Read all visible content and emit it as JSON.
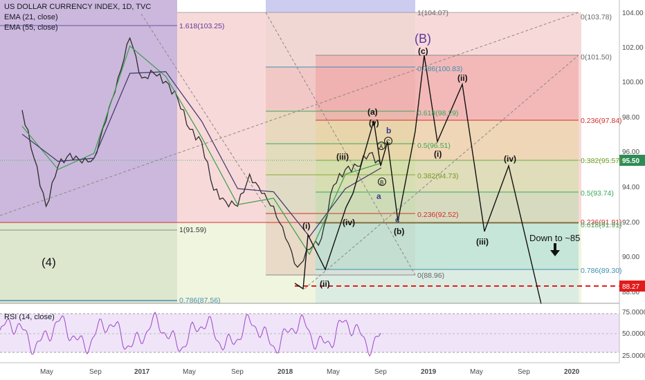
{
  "header": {
    "symbol": "US DOLLAR CURRENCY INDEX, 1D, TVC",
    "ema_fast": "EMA (21, close)",
    "ema_slow": "EMA (55, close)"
  },
  "rsi_pane": {
    "label": "RSI (14, close)",
    "ticks": [
      "75.0000",
      "50.0000",
      "25.0000"
    ]
  },
  "price_axis": {
    "ticks": [
      "104.00",
      "102.00",
      "100.00",
      "98.00",
      "96.00",
      "94.00",
      "92.00",
      "90.00",
      "88.00"
    ],
    "current_price": "95.50",
    "alert_price": "88.27"
  },
  "time_axis": {
    "labels": [
      "May",
      "Sep",
      "2017",
      "May",
      "Sep",
      "2018",
      "May",
      "Sep",
      "2019",
      "May",
      "Sep",
      "2020"
    ]
  },
  "fib_left": [
    {
      "label": "1.618(103.25)",
      "color": "#5a3a9a"
    },
    {
      "label": "1(91.59)",
      "color": "#333333"
    },
    {
      "label": "0.786(87.56)",
      "color": "#4a8fb0"
    }
  ],
  "fib_center": [
    {
      "label": "1(104.07)",
      "color": "#666666"
    },
    {
      "label": "0.786(100.83)",
      "color": "#3c8fb0"
    },
    {
      "label": "0.618(98.29)",
      "color": "#38a855"
    },
    {
      "label": "0.5(96.51)",
      "color": "#38a855"
    },
    {
      "label": "0.382(94.73)",
      "color": "#8aa832"
    },
    {
      "label": "0.236(92.52)",
      "color": "#d22e2e"
    },
    {
      "label": "0(88.96)",
      "color": "#666666"
    }
  ],
  "fib_right": [
    {
      "label": "0(103.78)",
      "color": "#666666"
    },
    {
      "label": "0(101.50)",
      "color": "#666666"
    },
    {
      "label": "0.236(97.84)",
      "color": "#d22e2e"
    },
    {
      "label": "0.382(95.57)",
      "color": "#8aa832"
    },
    {
      "label": "0.5(93.74)",
      "color": "#38a855"
    },
    {
      "label": "0.236(91.91)",
      "color": "#d22e2e"
    },
    {
      "label": "0.618(91.91)",
      "color": "#38a855"
    },
    {
      "label": "0.786(89.30)",
      "color": "#3c8fb0"
    }
  ],
  "waves": {
    "big_4": "(4)",
    "big_B": "(B)",
    "wave_c_top": "(c)",
    "wave_a_paren": "(a)",
    "wave_v_paren": "(v)",
    "wave_iii_paren": "(iii)",
    "wave_iv_paren": "(iv)",
    "wave_i_paren": "(i)",
    "wave_ii_paren": "(ii)",
    "wave_b_paren": "(b)",
    "small_a": "a",
    "small_b": "b",
    "small_c": "c",
    "circle_a": "A",
    "circle_b": "B",
    "circle_c": "C",
    "fc_i": "(i)",
    "fc_ii": "(ii)",
    "fc_iii": "(iii)",
    "fc_iv": "(iv)"
  },
  "annotation": {
    "target": "Down to ~85"
  },
  "chart_data": {
    "type": "line",
    "title": "US DOLLAR CURRENCY INDEX, 1D, TVC",
    "series": [
      {
        "name": "US DOLLAR CURRENCY INDEX",
        "x": [
          "2016-03",
          "2016-04",
          "2016-05",
          "2016-06",
          "2016-07",
          "2016-08",
          "2016-09",
          "2016-10",
          "2016-11",
          "2016-12",
          "2017-01",
          "2017-02",
          "2017-03",
          "2017-04",
          "2017-05",
          "2017-06",
          "2017-07",
          "2017-08",
          "2017-09",
          "2017-10",
          "2017-11",
          "2017-12",
          "2018-01",
          "2018-02",
          "2018-03",
          "2018-04",
          "2018-05",
          "2018-06",
          "2018-07",
          "2018-08",
          "2018-09"
        ],
        "values": [
          98.5,
          95.5,
          92.5,
          95.0,
          95.8,
          95.2,
          95.5,
          97.8,
          100.5,
          103.0,
          100.5,
          100.8,
          100.3,
          99.2,
          97.3,
          96.5,
          93.5,
          92.8,
          92.5,
          94.5,
          93.3,
          92.5,
          90.5,
          88.7,
          89.8,
          90.5,
          93.8,
          94.8,
          95.0,
          95.8,
          95.1
        ]
      },
      {
        "name": "EMA (21, close)",
        "x": [
          "2016-03",
          "2016-06",
          "2016-09",
          "2016-12",
          "2017-03",
          "2017-06",
          "2017-09",
          "2017-12",
          "2018-03",
          "2018-06",
          "2018-09"
        ],
        "values": [
          97.5,
          94.8,
          95.8,
          102.5,
          100.6,
          96.8,
          92.6,
          93.0,
          89.5,
          94.5,
          95.2
        ]
      },
      {
        "name": "EMA (55, close)",
        "x": [
          "2016-03",
          "2016-06",
          "2016-09",
          "2016-12",
          "2017-03",
          "2017-06",
          "2017-09",
          "2017-12",
          "2018-03",
          "2018-06",
          "2018-09"
        ],
        "values": [
          97.0,
          95.3,
          95.5,
          100.8,
          100.9,
          97.8,
          93.6,
          93.4,
          90.6,
          93.6,
          94.9
        ]
      }
    ],
    "rsi": {
      "name": "RSI (14, close)",
      "ylim": [
        20,
        85
      ],
      "levels": [
        70,
        30
      ]
    },
    "ylim": [
      87.0,
      104.6
    ],
    "legend": "top-left",
    "grid": false
  }
}
